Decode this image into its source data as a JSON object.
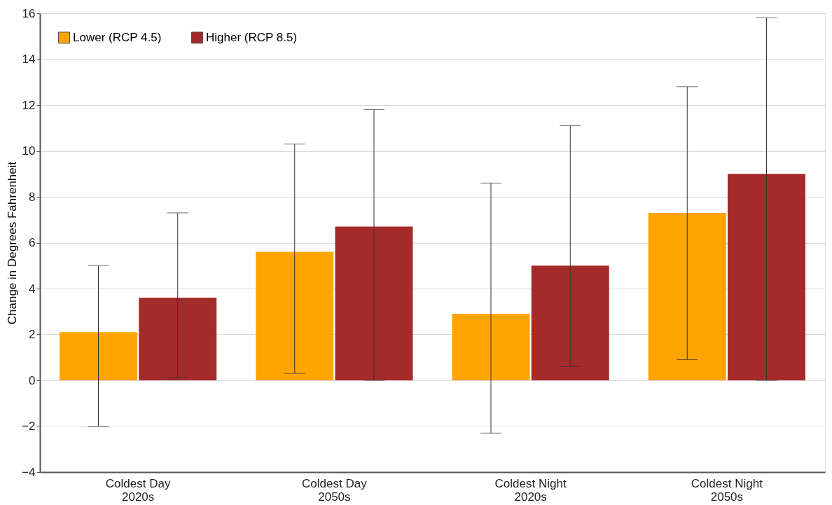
{
  "chart_data": {
    "type": "bar",
    "ylabel": "Change in Degrees Fahrenheit",
    "categories": [
      "Coldest Day\n2020s",
      "Coldest Day\n2050s",
      "Coldest Night\n2020s",
      "Coldest Night\n2050s"
    ],
    "series": [
      {
        "name": "Lower (RCP 4.5)",
        "color": "#ffa500",
        "values": [
          2.1,
          5.6,
          2.9,
          7.3
        ],
        "errors": [
          [
            -2.0,
            5.0
          ],
          [
            0.3,
            10.3
          ],
          [
            -2.3,
            8.6
          ],
          [
            0.9,
            12.8
          ]
        ]
      },
      {
        "name": "Higher (RCP 8.5)",
        "color": "#a52a2a",
        "values": [
          3.6,
          6.7,
          5.0,
          9.0
        ],
        "errors": [
          [
            0.1,
            7.3
          ],
          [
            0.0,
            11.8
          ],
          [
            0.6,
            11.1
          ],
          [
            0.0,
            15.8
          ]
        ]
      }
    ],
    "ylim": [
      -4,
      16
    ],
    "yticks": [
      -4,
      -2,
      0,
      2,
      4,
      6,
      8,
      10,
      12,
      14,
      16
    ],
    "grid": "y",
    "legend": "top left"
  }
}
